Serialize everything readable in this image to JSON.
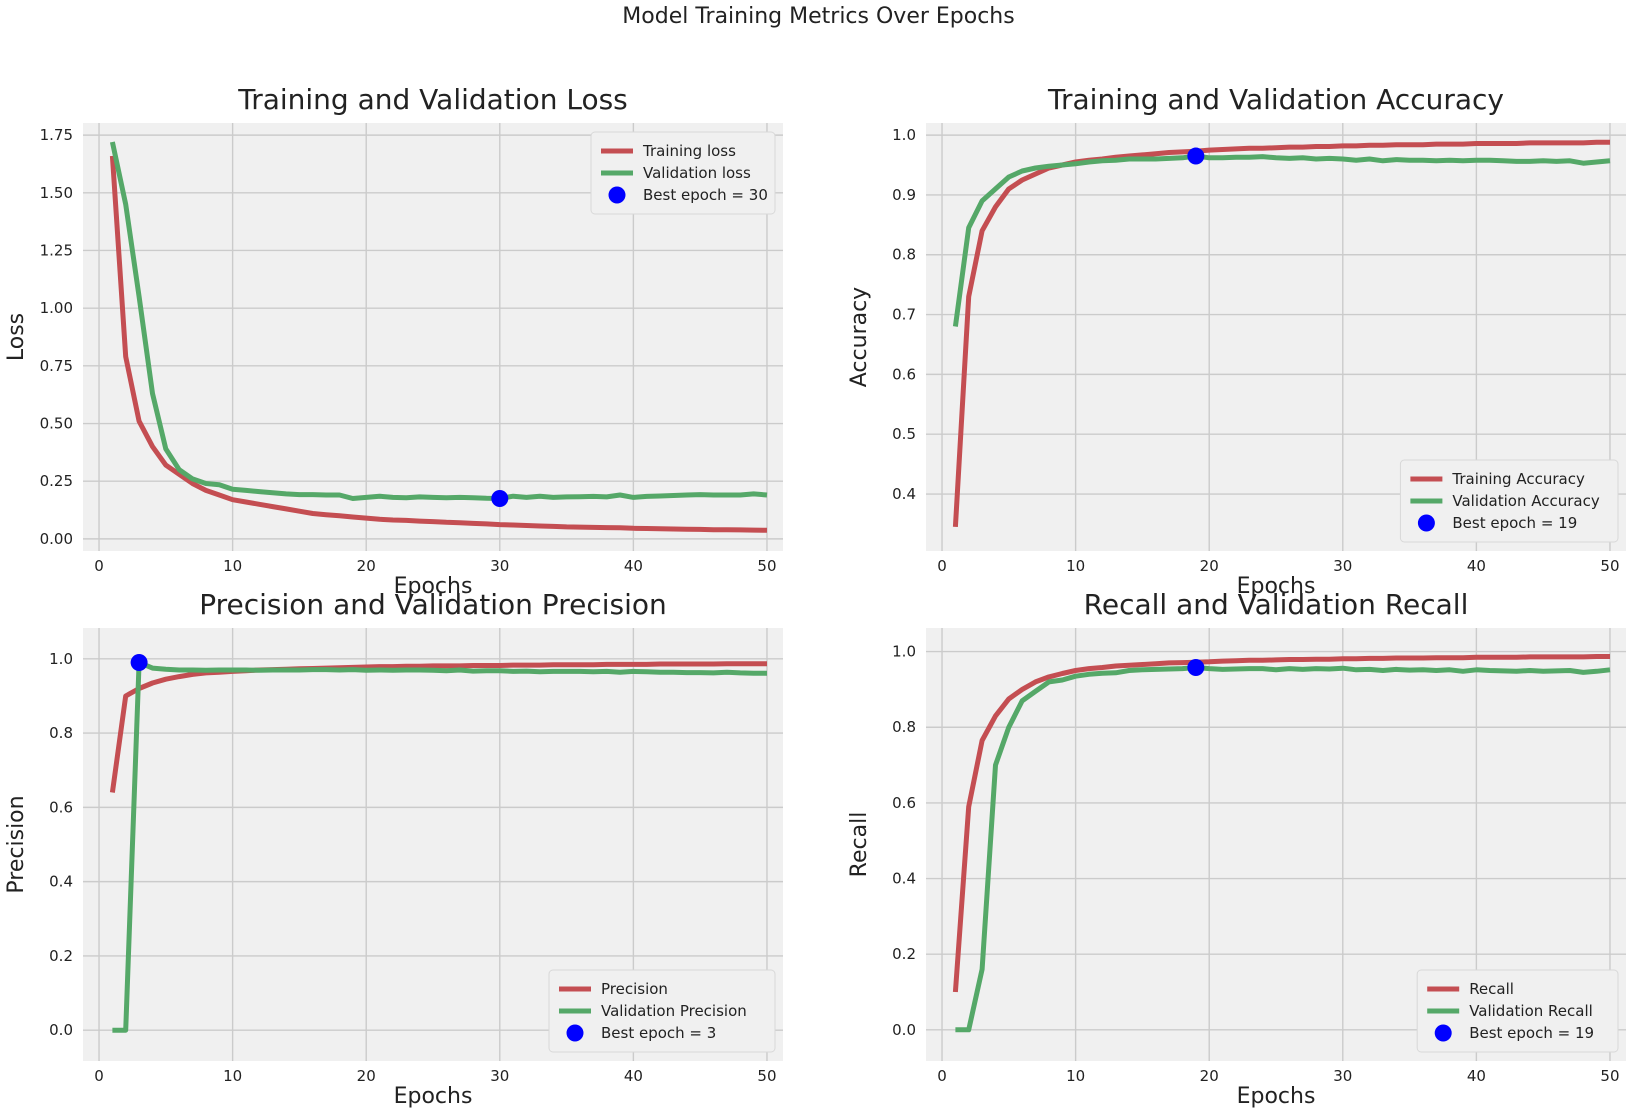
{
  "figure": {
    "title": "Model Training Metrics Over Epochs"
  },
  "colors": {
    "train": "#c44e52",
    "val": "#55a868",
    "best": "#0000ff",
    "plot_bg": "#f0f0f0",
    "grid": "#cbcbcb",
    "text": "#222222"
  },
  "chart_data": [
    {
      "type": "line",
      "title": "Training and Validation Loss",
      "xlabel": "Epochs",
      "ylabel": "Loss",
      "xlim": [
        0,
        50
      ],
      "ylim": [
        0,
        1.75
      ],
      "xticks": [
        0,
        10,
        20,
        30,
        40,
        50
      ],
      "yticks": [
        0,
        0.25,
        0.5,
        0.75,
        1.0,
        1.25,
        1.5,
        1.75
      ],
      "ytick_labels": [
        "0.00",
        "0.25",
        "0.50",
        "0.75",
        "1.00",
        "1.25",
        "1.50",
        "1.75"
      ],
      "legend_loc": "top-right",
      "grid": true,
      "x": [
        1,
        2,
        3,
        4,
        5,
        6,
        7,
        8,
        9,
        10,
        11,
        12,
        13,
        14,
        15,
        16,
        17,
        18,
        19,
        20,
        21,
        22,
        23,
        24,
        25,
        26,
        27,
        28,
        29,
        30,
        31,
        32,
        33,
        34,
        35,
        36,
        37,
        38,
        39,
        40,
        41,
        42,
        43,
        44,
        45,
        46,
        47,
        48,
        49,
        50
      ],
      "series": [
        {
          "name": "Training loss",
          "color_key": "train",
          "values": [
            1.66,
            0.79,
            0.51,
            0.4,
            0.32,
            0.28,
            0.24,
            0.21,
            0.19,
            0.17,
            0.16,
            0.15,
            0.14,
            0.13,
            0.12,
            0.11,
            0.105,
            0.1,
            0.095,
            0.09,
            0.085,
            0.082,
            0.08,
            0.077,
            0.075,
            0.072,
            0.07,
            0.067,
            0.065,
            0.062,
            0.06,
            0.058,
            0.056,
            0.054,
            0.052,
            0.051,
            0.05,
            0.049,
            0.048,
            0.046,
            0.045,
            0.044,
            0.043,
            0.042,
            0.041,
            0.04,
            0.04,
            0.039,
            0.038,
            0.037
          ]
        },
        {
          "name": "Validation loss",
          "color_key": "val",
          "values": [
            1.72,
            1.45,
            1.05,
            0.63,
            0.39,
            0.3,
            0.26,
            0.24,
            0.235,
            0.215,
            0.21,
            0.205,
            0.2,
            0.195,
            0.192,
            0.192,
            0.19,
            0.19,
            0.175,
            0.18,
            0.185,
            0.18,
            0.178,
            0.182,
            0.18,
            0.178,
            0.18,
            0.178,
            0.176,
            0.175,
            0.185,
            0.18,
            0.185,
            0.18,
            0.182,
            0.183,
            0.184,
            0.182,
            0.19,
            0.18,
            0.184,
            0.186,
            0.188,
            0.19,
            0.192,
            0.19,
            0.19,
            0.19,
            0.195,
            0.19
          ]
        }
      ],
      "best": {
        "label": "Best epoch = 30",
        "x": 30,
        "y": 0.175
      }
    },
    {
      "type": "line",
      "title": "Training and Validation Accuracy",
      "xlabel": "Epochs",
      "ylabel": "Accuracy",
      "xlim": [
        0,
        50
      ],
      "ylim": [
        0.325,
        1.0
      ],
      "xticks": [
        0,
        10,
        20,
        30,
        40,
        50
      ],
      "yticks": [
        0.4,
        0.5,
        0.6,
        0.7,
        0.8,
        0.9,
        1.0
      ],
      "ytick_labels": [
        "0.4",
        "0.5",
        "0.6",
        "0.7",
        "0.8",
        "0.9",
        "1.0"
      ],
      "legend_loc": "bottom-right",
      "grid": true,
      "x": [
        1,
        2,
        3,
        4,
        5,
        6,
        7,
        8,
        9,
        10,
        11,
        12,
        13,
        14,
        15,
        16,
        17,
        18,
        19,
        20,
        21,
        22,
        23,
        24,
        25,
        26,
        27,
        28,
        29,
        30,
        31,
        32,
        33,
        34,
        35,
        36,
        37,
        38,
        39,
        40,
        41,
        42,
        43,
        44,
        45,
        46,
        47,
        48,
        49,
        50
      ],
      "series": [
        {
          "name": "Training Accuracy",
          "color_key": "train",
          "values": [
            0.345,
            0.73,
            0.84,
            0.88,
            0.91,
            0.925,
            0.935,
            0.945,
            0.95,
            0.955,
            0.958,
            0.96,
            0.963,
            0.965,
            0.967,
            0.969,
            0.971,
            0.972,
            0.973,
            0.975,
            0.976,
            0.977,
            0.978,
            0.978,
            0.979,
            0.98,
            0.98,
            0.981,
            0.981,
            0.982,
            0.982,
            0.983,
            0.983,
            0.984,
            0.984,
            0.984,
            0.985,
            0.985,
            0.985,
            0.986,
            0.986,
            0.986,
            0.986,
            0.987,
            0.987,
            0.987,
            0.987,
            0.987,
            0.988,
            0.988
          ]
        },
        {
          "name": "Validation Accuracy",
          "color_key": "val",
          "values": [
            0.68,
            0.845,
            0.89,
            0.91,
            0.93,
            0.94,
            0.945,
            0.948,
            0.95,
            0.952,
            0.955,
            0.957,
            0.958,
            0.96,
            0.96,
            0.96,
            0.961,
            0.962,
            0.965,
            0.962,
            0.962,
            0.963,
            0.963,
            0.964,
            0.962,
            0.961,
            0.962,
            0.96,
            0.961,
            0.96,
            0.958,
            0.96,
            0.957,
            0.959,
            0.958,
            0.958,
            0.957,
            0.958,
            0.957,
            0.958,
            0.958,
            0.957,
            0.956,
            0.956,
            0.957,
            0.956,
            0.957,
            0.953,
            0.955,
            0.957
          ]
        }
      ],
      "best": {
        "label": "Best epoch = 19",
        "x": 19,
        "y": 0.965
      }
    },
    {
      "type": "line",
      "title": "Precision and Validation Precision",
      "xlabel": "Epochs",
      "ylabel": "Precision",
      "xlim": [
        0,
        50
      ],
      "ylim": [
        -0.05,
        1.05
      ],
      "xticks": [
        0,
        10,
        20,
        30,
        40,
        50
      ],
      "yticks": [
        0,
        0.2,
        0.4,
        0.6,
        0.8,
        1.0
      ],
      "ytick_labels": [
        "0.0",
        "0.2",
        "0.4",
        "0.6",
        "0.8",
        "1.0"
      ],
      "legend_loc": "bottom-right",
      "grid": true,
      "x": [
        1,
        2,
        3,
        4,
        5,
        6,
        7,
        8,
        9,
        10,
        11,
        12,
        13,
        14,
        15,
        16,
        17,
        18,
        19,
        20,
        21,
        22,
        23,
        24,
        25,
        26,
        27,
        28,
        29,
        30,
        31,
        32,
        33,
        34,
        35,
        36,
        37,
        38,
        39,
        40,
        41,
        42,
        43,
        44,
        45,
        46,
        47,
        48,
        49,
        50
      ],
      "series": [
        {
          "name": "Precision",
          "color_key": "train",
          "values": [
            0.64,
            0.9,
            0.92,
            0.935,
            0.945,
            0.952,
            0.958,
            0.962,
            0.964,
            0.966,
            0.968,
            0.97,
            0.971,
            0.972,
            0.973,
            0.974,
            0.975,
            0.976,
            0.977,
            0.978,
            0.979,
            0.979,
            0.98,
            0.98,
            0.981,
            0.981,
            0.981,
            0.982,
            0.982,
            0.982,
            0.983,
            0.983,
            0.983,
            0.984,
            0.984,
            0.984,
            0.984,
            0.985,
            0.985,
            0.985,
            0.985,
            0.986,
            0.986,
            0.986,
            0.986,
            0.986,
            0.987,
            0.987,
            0.987,
            0.987
          ]
        },
        {
          "name": "Validation Precision",
          "color_key": "val",
          "values": [
            0.0,
            0.0,
            0.99,
            0.975,
            0.972,
            0.97,
            0.97,
            0.969,
            0.97,
            0.97,
            0.97,
            0.969,
            0.97,
            0.97,
            0.97,
            0.971,
            0.971,
            0.97,
            0.971,
            0.969,
            0.97,
            0.969,
            0.97,
            0.97,
            0.969,
            0.968,
            0.97,
            0.967,
            0.968,
            0.968,
            0.966,
            0.967,
            0.965,
            0.966,
            0.966,
            0.966,
            0.965,
            0.966,
            0.964,
            0.966,
            0.965,
            0.964,
            0.964,
            0.963,
            0.963,
            0.962,
            0.964,
            0.962,
            0.961,
            0.961
          ]
        }
      ],
      "best": {
        "label": "Best epoch = 3",
        "x": 3,
        "y": 0.99
      }
    },
    {
      "type": "line",
      "title": "Recall and Validation Recall",
      "xlabel": "Epochs",
      "ylabel": "Recall",
      "xlim": [
        0,
        50
      ],
      "ylim": [
        -0.05,
        1.03
      ],
      "xticks": [
        0,
        10,
        20,
        30,
        40,
        50
      ],
      "yticks": [
        0,
        0.2,
        0.4,
        0.6,
        0.8,
        1.0
      ],
      "ytick_labels": [
        "0.0",
        "0.2",
        "0.4",
        "0.6",
        "0.8",
        "1.0"
      ],
      "legend_loc": "bottom-right",
      "grid": true,
      "x": [
        1,
        2,
        3,
        4,
        5,
        6,
        7,
        8,
        9,
        10,
        11,
        12,
        13,
        14,
        15,
        16,
        17,
        18,
        19,
        20,
        21,
        22,
        23,
        24,
        25,
        26,
        27,
        28,
        29,
        30,
        31,
        32,
        33,
        34,
        35,
        36,
        37,
        38,
        39,
        40,
        41,
        42,
        43,
        44,
        45,
        46,
        47,
        48,
        49,
        50
      ],
      "series": [
        {
          "name": "Recall",
          "color_key": "train",
          "values": [
            0.1,
            0.59,
            0.765,
            0.83,
            0.875,
            0.9,
            0.92,
            0.933,
            0.942,
            0.95,
            0.955,
            0.958,
            0.962,
            0.964,
            0.966,
            0.968,
            0.97,
            0.971,
            0.972,
            0.973,
            0.975,
            0.976,
            0.977,
            0.977,
            0.978,
            0.979,
            0.979,
            0.98,
            0.98,
            0.981,
            0.981,
            0.982,
            0.982,
            0.983,
            0.983,
            0.983,
            0.984,
            0.984,
            0.984,
            0.985,
            0.985,
            0.985,
            0.985,
            0.986,
            0.986,
            0.986,
            0.986,
            0.986,
            0.987,
            0.987
          ]
        },
        {
          "name": "Validation Recall",
          "color_key": "val",
          "values": [
            0.0,
            0.0,
            0.16,
            0.7,
            0.8,
            0.87,
            0.895,
            0.92,
            0.925,
            0.935,
            0.94,
            0.943,
            0.944,
            0.95,
            0.952,
            0.953,
            0.954,
            0.955,
            0.958,
            0.955,
            0.953,
            0.954,
            0.955,
            0.955,
            0.952,
            0.955,
            0.953,
            0.955,
            0.954,
            0.956,
            0.952,
            0.953,
            0.95,
            0.953,
            0.951,
            0.952,
            0.95,
            0.952,
            0.948,
            0.952,
            0.95,
            0.949,
            0.948,
            0.95,
            0.948,
            0.949,
            0.95,
            0.945,
            0.948,
            0.952
          ]
        }
      ],
      "best": {
        "label": "Best epoch = 19",
        "x": 19,
        "y": 0.958
      }
    }
  ]
}
